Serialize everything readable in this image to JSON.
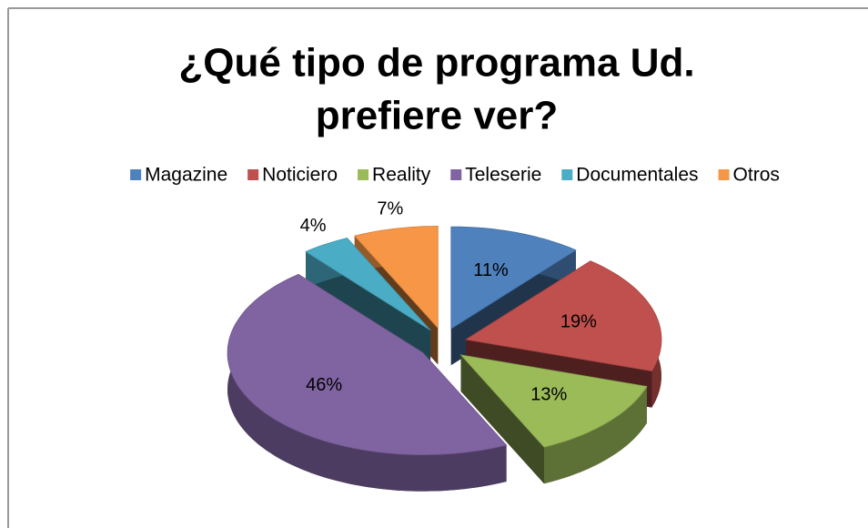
{
  "chart_data": {
    "type": "pie",
    "title": "¿Qué tipo de programa Ud. prefiere ver?",
    "title_lines": [
      "¿Qué tipo de programa Ud.",
      "prefiere ver?"
    ],
    "categories": [
      "Magazine",
      "Noticiero",
      "Reality",
      "Teleserie",
      "Documentales",
      "Otros"
    ],
    "values": [
      11,
      19,
      13,
      46,
      4,
      7
    ],
    "value_labels": [
      "11%",
      "19%",
      "13%",
      "46%",
      "4%",
      "7%"
    ],
    "colors": [
      "#4f81bd",
      "#c0504d",
      "#9bbb59",
      "#8064a2",
      "#4bacc6",
      "#f79646"
    ],
    "legend": "top",
    "exploded": true,
    "3d": true
  }
}
